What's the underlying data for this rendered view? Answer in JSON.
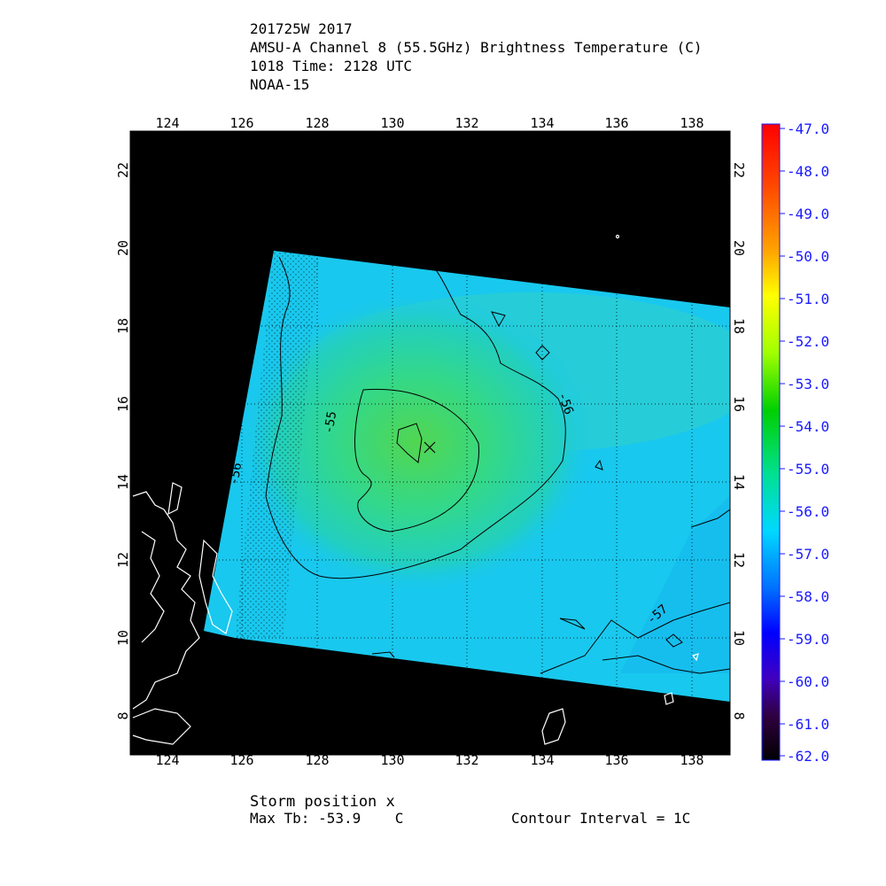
{
  "header": {
    "storm_id_year": "201725W 2017",
    "product": "AMSU-A Channel 8 (55.5GHz) Brightness Temperature (C)",
    "time": "1018 Time: 2128 UTC",
    "satellite": "NOAA-15"
  },
  "map": {
    "lon_ticks": [
      "124",
      "126",
      "128",
      "130",
      "132",
      "134",
      "136",
      "138"
    ],
    "lat_ticks": [
      "8",
      "10",
      "12",
      "14",
      "16",
      "18",
      "20",
      "22"
    ],
    "lon_range": [
      123.0,
      139.0
    ],
    "lat_range": [
      7.0,
      23.0
    ],
    "grid": "dotted",
    "storm_marker": "x",
    "storm_position": {
      "lon": 131.2,
      "lat": 15.0
    },
    "contour_labels": [
      "-55",
      "-56",
      "-56",
      "-57"
    ],
    "background_color": "#000000",
    "swath_base_color": "#19c8ee",
    "center_color": "#3bdc6a"
  },
  "colorbar": {
    "labels": [
      "-47.0",
      "-48.0",
      "-49.0",
      "-50.0",
      "-51.0",
      "-52.0",
      "-53.0",
      "-54.0",
      "-55.0",
      "-56.0",
      "-57.0",
      "-58.0",
      "-59.0",
      "-60.0",
      "-61.0",
      "-62.0"
    ],
    "range": [
      -62.0,
      -47.0
    ],
    "label_color": "#1a1aff"
  },
  "footer": {
    "storm_position": "Storm position x",
    "max_tb": "Max Tb: -53.9    C",
    "contour_interval": "Contour Interval = 1C"
  }
}
